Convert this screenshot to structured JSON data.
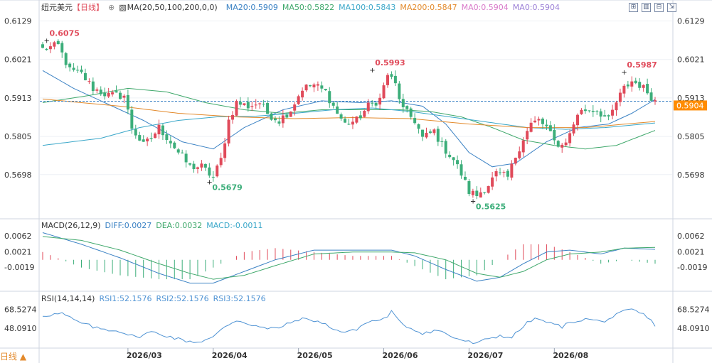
{
  "header": {
    "symbol": "纽元美元",
    "period": "【日线】",
    "ma_spec": "MA(20,50,100,200,0,0)",
    "ma_values": [
      {
        "label": "MA20:0.5909",
        "color": "#3b82c4"
      },
      {
        "label": "MA50:0.5822",
        "color": "#3fa86b"
      },
      {
        "label": "MA100:0.5843",
        "color": "#3aa7c9"
      },
      {
        "label": "MA200:0.5847",
        "color": "#e38a2c"
      },
      {
        "label": "MA0:0.5904",
        "color": "#d979c9"
      },
      {
        "label": "MA0:0.5904",
        "color": "#9b7fd6"
      }
    ],
    "buttons": [
      "⊞",
      "▥",
      "⊟",
      "⇲"
    ]
  },
  "macd": {
    "spec": "MACD(26,12,9)",
    "diff": "DIFF:0.0027",
    "dea": "DEA:0.0032",
    "macd": "MACD:-0.0011",
    "ticks": [
      "0.0062",
      "0.0021",
      "-0.0019"
    ]
  },
  "rsi": {
    "spec": "RSI(14,14,14)",
    "rsi1": "RSI1:52.1576",
    "rsi2": "RSI2:52.1576",
    "rsi3": "RSI3:52.1576",
    "ticks": [
      "68.5274",
      "48.0910"
    ]
  },
  "footer": {
    "period_label": "日线 ▲",
    "months": [
      "2026/03",
      "2026/04",
      "2026/05",
      "2026/06",
      "2026/07",
      "2026/08"
    ]
  },
  "colors": {
    "up": "#e04a5a",
    "down": "#3cae7a",
    "ma20": "#3b82c4",
    "ma50": "#3fa86b",
    "ma100": "#3aa7c9",
    "ma200": "#e38a2c",
    "current": "#ff8c00",
    "rsi": "#4f93d4"
  },
  "chart_data": {
    "type": "candlestick",
    "price_axis_ticks": [
      "0.6129",
      "0.6021",
      "0.5913",
      "0.5805",
      "0.5698"
    ],
    "ylim": [
      0.559,
      0.616
    ],
    "current_price": "0.5904",
    "annotations": [
      {
        "label": "0.6075",
        "value": 0.6075,
        "kind": "high"
      },
      {
        "label": "0.5679",
        "value": 0.5679,
        "kind": "low"
      },
      {
        "label": "0.5993",
        "value": 0.5993,
        "kind": "high"
      },
      {
        "label": "0.5625",
        "value": 0.5625,
        "kind": "low"
      },
      {
        "label": "0.5987",
        "value": 0.5987,
        "kind": "high"
      }
    ],
    "close_path": [
      [
        0,
        0.605
      ],
      [
        4,
        0.606
      ],
      [
        7,
        0.599
      ],
      [
        10,
        0.598
      ],
      [
        13,
        0.594
      ],
      [
        17,
        0.592
      ],
      [
        21,
        0.592
      ],
      [
        23,
        0.583
      ],
      [
        26,
        0.578
      ],
      [
        28,
        0.58
      ],
      [
        30,
        0.583
      ],
      [
        33,
        0.579
      ],
      [
        35,
        0.576
      ],
      [
        38,
        0.572
      ],
      [
        41,
        0.572
      ],
      [
        44,
        0.569
      ],
      [
        46,
        0.574
      ],
      [
        48,
        0.585
      ],
      [
        50,
        0.59
      ],
      [
        53,
        0.589
      ],
      [
        56,
        0.59
      ],
      [
        58,
        0.587
      ],
      [
        61,
        0.585
      ],
      [
        64,
        0.588
      ],
      [
        67,
        0.594
      ],
      [
        70,
        0.595
      ],
      [
        73,
        0.593
      ],
      [
        76,
        0.587
      ],
      [
        78,
        0.584
      ],
      [
        81,
        0.585
      ],
      [
        84,
        0.589
      ],
      [
        87,
        0.591
      ],
      [
        89,
        0.598
      ],
      [
        91,
        0.595
      ],
      [
        93,
        0.588
      ],
      [
        96,
        0.585
      ],
      [
        98,
        0.58
      ],
      [
        101,
        0.582
      ],
      [
        103,
        0.578
      ],
      [
        106,
        0.574
      ],
      [
        108,
        0.57
      ],
      [
        110,
        0.565
      ],
      [
        112,
        0.564
      ],
      [
        115,
        0.567
      ],
      [
        117,
        0.57
      ],
      [
        120,
        0.569
      ],
      [
        122,
        0.575
      ],
      [
        124,
        0.58
      ],
      [
        126,
        0.584
      ],
      [
        128,
        0.585
      ],
      [
        130,
        0.583
      ],
      [
        132,
        0.579
      ],
      [
        134,
        0.578
      ],
      [
        136,
        0.581
      ],
      [
        138,
        0.587
      ],
      [
        140,
        0.588
      ],
      [
        143,
        0.588
      ],
      [
        146,
        0.585
      ],
      [
        148,
        0.59
      ],
      [
        150,
        0.594
      ],
      [
        152,
        0.596
      ],
      [
        154,
        0.595
      ],
      [
        156,
        0.593
      ],
      [
        158,
        0.5904
      ]
    ],
    "ma_series": [
      {
        "name": "MA20",
        "points": [
          [
            0,
            0.599
          ],
          [
            8,
            0.594
          ],
          [
            16,
            0.59
          ],
          [
            26,
            0.585
          ],
          [
            36,
            0.579
          ],
          [
            44,
            0.577
          ],
          [
            52,
            0.583
          ],
          [
            62,
            0.588
          ],
          [
            72,
            0.5905
          ],
          [
            82,
            0.59
          ],
          [
            90,
            0.5905
          ],
          [
            98,
            0.589
          ],
          [
            104,
            0.584
          ],
          [
            110,
            0.576
          ],
          [
            116,
            0.572
          ],
          [
            122,
            0.573
          ],
          [
            130,
            0.579
          ],
          [
            138,
            0.583
          ],
          [
            146,
            0.584
          ],
          [
            152,
            0.587
          ],
          [
            158,
            0.5909
          ]
        ]
      },
      {
        "name": "MA50",
        "points": [
          [
            0,
            0.59
          ],
          [
            12,
            0.592
          ],
          [
            22,
            0.594
          ],
          [
            32,
            0.593
          ],
          [
            42,
            0.59
          ],
          [
            52,
            0.588
          ],
          [
            62,
            0.587
          ],
          [
            72,
            0.588
          ],
          [
            82,
            0.588
          ],
          [
            92,
            0.588
          ],
          [
            100,
            0.5875
          ],
          [
            108,
            0.586
          ],
          [
            116,
            0.583
          ],
          [
            124,
            0.5795
          ],
          [
            132,
            0.578
          ],
          [
            140,
            0.577
          ],
          [
            148,
            0.578
          ],
          [
            158,
            0.5822
          ]
        ]
      },
      {
        "name": "MA100",
        "points": [
          [
            0,
            0.578
          ],
          [
            15,
            0.58
          ],
          [
            25,
            0.583
          ],
          [
            35,
            0.585
          ],
          [
            45,
            0.586
          ],
          [
            55,
            0.5862
          ],
          [
            65,
            0.587
          ],
          [
            75,
            0.588
          ],
          [
            85,
            0.5885
          ],
          [
            95,
            0.5875
          ],
          [
            105,
            0.586
          ],
          [
            115,
            0.5845
          ],
          [
            125,
            0.583
          ],
          [
            135,
            0.5825
          ],
          [
            145,
            0.583
          ],
          [
            158,
            0.5843
          ]
        ]
      },
      {
        "name": "MA200",
        "points": [
          [
            0,
            0.591
          ],
          [
            20,
            0.589
          ],
          [
            35,
            0.587
          ],
          [
            50,
            0.586
          ],
          [
            65,
            0.5855
          ],
          [
            80,
            0.5858
          ],
          [
            95,
            0.5855
          ],
          [
            110,
            0.584
          ],
          [
            125,
            0.583
          ],
          [
            140,
            0.583
          ],
          [
            158,
            0.5847
          ]
        ]
      }
    ],
    "macd_ylim": [
      -0.007,
      0.008
    ],
    "macd_diff_path": [
      [
        0,
        0.007
      ],
      [
        10,
        0.004
      ],
      [
        20,
        0.0005
      ],
      [
        30,
        -0.0035
      ],
      [
        38,
        -0.006
      ],
      [
        44,
        -0.006
      ],
      [
        52,
        -0.003
      ],
      [
        60,
        0.0
      ],
      [
        70,
        0.0025
      ],
      [
        80,
        0.0025
      ],
      [
        90,
        0.0025
      ],
      [
        96,
        0.001
      ],
      [
        104,
        -0.0025
      ],
      [
        112,
        -0.0055
      ],
      [
        118,
        -0.0045
      ],
      [
        124,
        -0.001
      ],
      [
        130,
        0.002
      ],
      [
        136,
        0.0025
      ],
      [
        144,
        0.0015
      ],
      [
        150,
        0.003
      ],
      [
        158,
        0.0027
      ]
    ],
    "macd_dea_path": [
      [
        0,
        0.006
      ],
      [
        10,
        0.005
      ],
      [
        20,
        0.0025
      ],
      [
        30,
        -0.001
      ],
      [
        38,
        -0.0035
      ],
      [
        44,
        -0.005
      ],
      [
        52,
        -0.004
      ],
      [
        60,
        -0.0015
      ],
      [
        70,
        0.0015
      ],
      [
        80,
        0.002
      ],
      [
        90,
        0.002
      ],
      [
        96,
        0.0018
      ],
      [
        104,
        0.0
      ],
      [
        112,
        -0.0035
      ],
      [
        118,
        -0.0045
      ],
      [
        124,
        -0.003
      ],
      [
        130,
        0.0
      ],
      [
        136,
        0.0015
      ],
      [
        144,
        0.002
      ],
      [
        150,
        0.003
      ],
      [
        158,
        0.0032
      ]
    ],
    "rsi_ylim": [
      28,
      76
    ],
    "rsi_path": [
      [
        0,
        62
      ],
      [
        5,
        64
      ],
      [
        9,
        55
      ],
      [
        14,
        48
      ],
      [
        20,
        45
      ],
      [
        24,
        38
      ],
      [
        28,
        44
      ],
      [
        32,
        40
      ],
      [
        36,
        35
      ],
      [
        40,
        33
      ],
      [
        44,
        38
      ],
      [
        47,
        50
      ],
      [
        50,
        57
      ],
      [
        54,
        52
      ],
      [
        58,
        47
      ],
      [
        62,
        50
      ],
      [
        66,
        58
      ],
      [
        70,
        57
      ],
      [
        74,
        50
      ],
      [
        77,
        44
      ],
      [
        80,
        45
      ],
      [
        84,
        55
      ],
      [
        88,
        58
      ],
      [
        90,
        66
      ],
      [
        92,
        55
      ],
      [
        95,
        48
      ],
      [
        98,
        43
      ],
      [
        102,
        46
      ],
      [
        106,
        38
      ],
      [
        110,
        33
      ],
      [
        112,
        31
      ],
      [
        115,
        37
      ],
      [
        118,
        40
      ],
      [
        121,
        38
      ],
      [
        124,
        50
      ],
      [
        126,
        57
      ],
      [
        128,
        58
      ],
      [
        131,
        53
      ],
      [
        134,
        50
      ],
      [
        138,
        57
      ],
      [
        141,
        58
      ],
      [
        144,
        55
      ],
      [
        147,
        60
      ],
      [
        150,
        66
      ],
      [
        152,
        68
      ],
      [
        155,
        63
      ],
      [
        158,
        52
      ]
    ]
  }
}
